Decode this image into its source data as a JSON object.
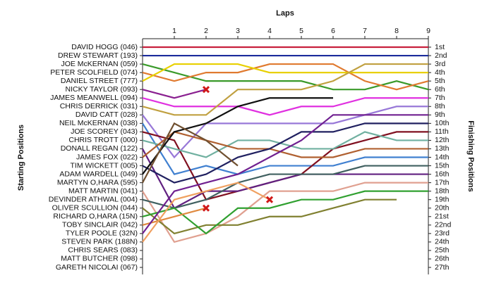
{
  "chart_data": {
    "type": "lapchart",
    "title": "Laps",
    "ylabel": "Starting Positions",
    "y2label": "Finishing Positions",
    "x": [
      0,
      1,
      2,
      3,
      4,
      5,
      6,
      7,
      8,
      9
    ],
    "xlim": [
      0,
      9
    ],
    "xticks": [
      1,
      2,
      3,
      4,
      5,
      6,
      7,
      8,
      9
    ],
    "ylim": [
      1,
      27
    ],
    "y_reversed": true,
    "y2lim": [
      1,
      27
    ],
    "y2ticks": [
      {
        "value": 1,
        "label": "1st"
      },
      {
        "value": 2,
        "label": "2nd"
      },
      {
        "value": 3,
        "label": "3rd"
      },
      {
        "value": 4,
        "label": "4th"
      },
      {
        "value": 5,
        "label": "5th"
      },
      {
        "value": 6,
        "label": "6th"
      },
      {
        "value": 7,
        "label": "7th"
      },
      {
        "value": 8,
        "label": "8th"
      },
      {
        "value": 9,
        "label": "9th"
      },
      {
        "value": 10,
        "label": "10th"
      },
      {
        "value": 11,
        "label": "11th"
      },
      {
        "value": 12,
        "label": "12th"
      },
      {
        "value": 13,
        "label": "13th"
      },
      {
        "value": 14,
        "label": "14th"
      },
      {
        "value": 15,
        "label": "15th"
      },
      {
        "value": 16,
        "label": "16th"
      },
      {
        "value": 17,
        "label": "17th"
      },
      {
        "value": 18,
        "label": "18th"
      },
      {
        "value": 19,
        "label": "19th"
      },
      {
        "value": 20,
        "label": "20th"
      },
      {
        "value": 21,
        "label": "21st"
      },
      {
        "value": 22,
        "label": "22nd"
      },
      {
        "value": 23,
        "label": "23rd"
      },
      {
        "value": 24,
        "label": "24th"
      },
      {
        "value": 25,
        "label": "25th"
      },
      {
        "value": 26,
        "label": "26th"
      },
      {
        "value": 27,
        "label": "27th"
      }
    ],
    "series": [
      {
        "name": "DAVID HOGG (046)",
        "color": "#c8203c",
        "values": [
          1,
          1,
          1,
          1,
          1,
          1,
          1,
          1,
          1,
          1
        ]
      },
      {
        "name": "DREW STEWART (193)",
        "color": "#1c2c9c",
        "values": [
          2,
          2,
          2,
          2,
          2,
          2,
          2,
          2,
          2,
          2
        ]
      },
      {
        "name": "JOE McKERNAN (059)",
        "color": "#3a9a2a",
        "values": [
          3,
          4,
          5,
          5,
          5,
          5,
          6,
          6,
          5,
          6
        ]
      },
      {
        "name": "PETER SCOLFIELD (074)",
        "color": "#e07a30",
        "values": [
          4,
          5,
          4,
          4,
          3,
          3,
          3,
          5,
          6,
          5
        ]
      },
      {
        "name": "DANIEL STREET (777)",
        "color": "#e8d000",
        "values": [
          5,
          3,
          3,
          3,
          4,
          4,
          4,
          4,
          4,
          4
        ]
      },
      {
        "name": "NICKY TAYLOR (093)",
        "color": "#8a2090",
        "values": [
          6,
          7,
          6,
          null,
          null,
          null,
          null,
          null,
          null,
          null
        ],
        "retired": true
      },
      {
        "name": "JAMES MEANWELL (094)",
        "color": "#e030e0",
        "values": [
          7,
          8,
          8,
          8,
          9,
          8,
          8,
          7,
          7,
          7
        ]
      },
      {
        "name": "CHRIS DERRICK (031)",
        "color": "#c0a040",
        "values": [
          8,
          9,
          9,
          6,
          6,
          6,
          5,
          3,
          3,
          3
        ]
      },
      {
        "name": "DAVID CATT (028)",
        "color": "#9878d8",
        "values": [
          9,
          14,
          10,
          10,
          10,
          10,
          10,
          9,
          8,
          8
        ]
      },
      {
        "name": "NEIL McKERNAN (038)",
        "color": "#4080d0",
        "values": [
          10,
          16,
          15,
          16,
          15,
          15,
          15,
          14,
          14,
          14
        ]
      },
      {
        "name": "JOE SCOREY (043)",
        "color": "#801020",
        "values": [
          11,
          12,
          19,
          18,
          17,
          16,
          13,
          12,
          11,
          11
        ]
      },
      {
        "name": "CHRIS TROTT (000)",
        "color": "#70b0a0",
        "values": [
          12,
          13,
          14,
          12,
          12,
          13,
          13,
          11,
          12,
          12
        ]
      },
      {
        "name": "DONALL REGAN (122)",
        "color": "#602080",
        "values": [
          13,
          20,
          18,
          18,
          17,
          16,
          16,
          16,
          16,
          16
        ]
      },
      {
        "name": "JAMES FOX (022)",
        "color": "#b06030",
        "values": [
          14,
          11,
          12,
          13,
          13,
          14,
          14,
          13,
          13,
          13
        ]
      },
      {
        "name": "TIM WICKETT (005)",
        "color": "#202060",
        "values": [
          15,
          17,
          16,
          14,
          13,
          11,
          11,
          10,
          10,
          10
        ]
      },
      {
        "name": "ADAM WARDELL (049)",
        "color": "#101010",
        "values": [
          16,
          11,
          10,
          8,
          7,
          7,
          7,
          null,
          null,
          null
        ]
      },
      {
        "name": "MARTYN O,HARA (595)",
        "color": "#705030",
        "values": [
          17,
          10,
          12,
          15,
          null,
          null,
          null,
          null,
          null,
          null
        ]
      },
      {
        "name": "MATT MARTIN (041)",
        "color": "#e0a090",
        "values": [
          18,
          24,
          23,
          21,
          18,
          18,
          18,
          17,
          17,
          17
        ]
      },
      {
        "name": "DEVINDER ATHWAL (004)",
        "color": "#406060",
        "values": [
          19,
          20,
          19,
          17,
          16,
          16,
          16,
          15,
          15,
          15
        ]
      },
      {
        "name": "OLIVER SCULLION (044)",
        "color": "#808030",
        "values": [
          20,
          23,
          22,
          22,
          21,
          21,
          20,
          19,
          19,
          null
        ]
      },
      {
        "name": "RICHARD O,HARA (15N)",
        "color": "#30a030",
        "values": [
          21,
          20,
          23,
          20,
          20,
          19,
          19,
          18,
          18,
          18
        ]
      },
      {
        "name": "TOBY SINCLAIR (042)",
        "color": "#e08a40",
        "values": [
          22,
          21,
          20,
          null,
          null,
          null,
          null,
          null,
          null,
          null
        ],
        "retired": true
      },
      {
        "name": "TYLER POOLE (32N)",
        "color": "#702090",
        "values": [
          23,
          18,
          17,
          16,
          14,
          12,
          9,
          9,
          9,
          9
        ]
      },
      {
        "name": "STEVEN PARK (188N)",
        "color": "#f0a060",
        "values": [
          24,
          19,
          18,
          17,
          19,
          null,
          null,
          null,
          null,
          null
        ],
        "retired": true
      },
      {
        "name": "CHRIS SEARS (083)",
        "color": "#888888",
        "values": [
          25,
          null,
          null,
          null,
          null,
          null,
          null,
          null,
          null,
          null
        ]
      },
      {
        "name": "MATT BUTCHER (098)",
        "color": "#888888",
        "values": [
          26,
          null,
          null,
          null,
          null,
          null,
          null,
          null,
          null,
          null
        ]
      },
      {
        "name": "GARETH NICOLAI (067)",
        "color": "#888888",
        "values": [
          27,
          null,
          null,
          null,
          null,
          null,
          null,
          null,
          null,
          null
        ]
      }
    ]
  }
}
